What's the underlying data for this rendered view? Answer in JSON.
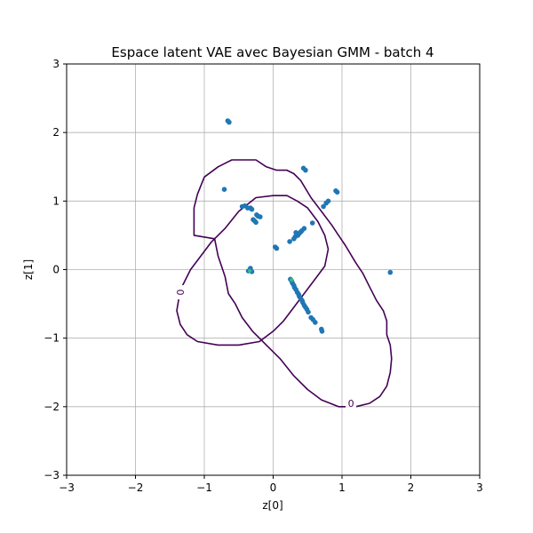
{
  "chart_data": {
    "type": "scatter",
    "title": "Espace latent VAE avec Bayesian GMM - batch 4",
    "xlabel": "z[0]",
    "ylabel": "z[1]",
    "xlim": [
      -3,
      3
    ],
    "ylim": [
      -3,
      3
    ],
    "x_ticks": [
      "−3",
      "−2",
      "−1",
      "0",
      "1",
      "2",
      "3"
    ],
    "y_ticks": [
      "−3",
      "−2",
      "−1",
      "0",
      "1",
      "2",
      "3"
    ],
    "grid": true,
    "colors": {
      "points": "#1f77b4",
      "highlight": "#3fb58a",
      "contour": "#440154",
      "grid": "#b0b0b0"
    },
    "contour_level_label": "0",
    "contours": [
      {
        "level": "0",
        "path": [
          [
            -0.6,
            1.6
          ],
          [
            -0.25,
            1.6
          ],
          [
            -0.1,
            1.5
          ],
          [
            0.05,
            1.45
          ],
          [
            0.2,
            1.45
          ],
          [
            0.3,
            1.4
          ],
          [
            0.4,
            1.3
          ],
          [
            0.55,
            1.05
          ],
          [
            0.7,
            0.85
          ],
          [
            0.85,
            0.65
          ],
          [
            0.95,
            0.5
          ],
          [
            1.05,
            0.35
          ],
          [
            1.2,
            0.1
          ],
          [
            1.3,
            -0.05
          ],
          [
            1.4,
            -0.25
          ],
          [
            1.5,
            -0.45
          ],
          [
            1.6,
            -0.6
          ],
          [
            1.65,
            -0.75
          ],
          [
            1.65,
            -0.95
          ],
          [
            1.7,
            -1.1
          ],
          [
            1.72,
            -1.3
          ],
          [
            1.7,
            -1.5
          ],
          [
            1.65,
            -1.7
          ],
          [
            1.55,
            -1.85
          ],
          [
            1.4,
            -1.95
          ],
          [
            1.2,
            -2.0
          ],
          [
            0.95,
            -2.0
          ],
          [
            0.7,
            -1.9
          ],
          [
            0.5,
            -1.75
          ],
          [
            0.3,
            -1.55
          ],
          [
            0.1,
            -1.3
          ],
          [
            -0.1,
            -1.1
          ],
          [
            -0.3,
            -0.9
          ],
          [
            -0.45,
            -0.7
          ],
          [
            -0.55,
            -0.5
          ],
          [
            -0.65,
            -0.35
          ],
          [
            -0.7,
            -0.1
          ],
          [
            -0.8,
            0.2
          ],
          [
            -0.85,
            0.45
          ],
          [
            -1.15,
            0.5
          ],
          [
            -1.15,
            0.9
          ],
          [
            -1.1,
            1.1
          ],
          [
            -1.0,
            1.35
          ],
          [
            -0.8,
            1.5
          ],
          [
            -0.6,
            1.6
          ]
        ]
      },
      {
        "level": "0",
        "path": [
          [
            -0.25,
            1.05
          ],
          [
            0.0,
            1.08
          ],
          [
            0.2,
            1.08
          ],
          [
            0.35,
            1.0
          ],
          [
            0.5,
            0.9
          ],
          [
            0.65,
            0.7
          ],
          [
            0.75,
            0.5
          ],
          [
            0.8,
            0.3
          ],
          [
            0.75,
            0.05
          ],
          [
            0.6,
            -0.15
          ],
          [
            0.45,
            -0.35
          ],
          [
            0.3,
            -0.55
          ],
          [
            0.15,
            -0.75
          ],
          [
            0.0,
            -0.9
          ],
          [
            -0.2,
            -1.05
          ],
          [
            -0.5,
            -1.1
          ],
          [
            -0.8,
            -1.1
          ],
          [
            -1.1,
            -1.05
          ],
          [
            -1.25,
            -0.95
          ],
          [
            -1.35,
            -0.8
          ],
          [
            -1.4,
            -0.6
          ],
          [
            -1.35,
            -0.3
          ],
          [
            -1.2,
            0.0
          ],
          [
            -1.05,
            0.2
          ],
          [
            -0.9,
            0.4
          ],
          [
            -0.7,
            0.6
          ],
          [
            -0.5,
            0.85
          ],
          [
            -0.25,
            1.05
          ]
        ]
      }
    ],
    "contour_labels": [
      {
        "text": "0",
        "x": -1.35,
        "y": -0.33
      },
      {
        "text": "0",
        "x": 1.13,
        "y": -1.95
      }
    ],
    "points": [
      [
        -0.66,
        2.17
      ],
      [
        -0.64,
        2.15
      ],
      [
        0.44,
        1.48
      ],
      [
        0.47,
        1.45
      ],
      [
        0.91,
        1.15
      ],
      [
        0.93,
        1.13
      ],
      [
        -0.71,
        1.17
      ],
      [
        0.8,
        1.0
      ],
      [
        0.77,
        0.97
      ],
      [
        0.73,
        0.92
      ],
      [
        -0.45,
        0.92
      ],
      [
        -0.41,
        0.93
      ],
      [
        -0.37,
        0.9
      ],
      [
        -0.33,
        0.9
      ],
      [
        -0.31,
        0.88
      ],
      [
        -0.24,
        0.8
      ],
      [
        -0.22,
        0.78
      ],
      [
        -0.19,
        0.77
      ],
      [
        -0.29,
        0.73
      ],
      [
        -0.27,
        0.71
      ],
      [
        -0.25,
        0.69
      ],
      [
        0.57,
        0.68
      ],
      [
        0.45,
        0.6
      ],
      [
        0.42,
        0.57
      ],
      [
        0.4,
        0.55
      ],
      [
        0.38,
        0.53
      ],
      [
        0.36,
        0.5
      ],
      [
        0.32,
        0.48
      ],
      [
        0.3,
        0.45
      ],
      [
        0.33,
        0.54
      ],
      [
        0.24,
        0.41
      ],
      [
        0.03,
        0.33
      ],
      [
        0.05,
        0.31
      ],
      [
        1.7,
        -0.04
      ],
      [
        -0.33,
        0.02
      ],
      [
        -0.36,
        -0.02
      ],
      [
        -0.31,
        -0.03
      ],
      [
        0.25,
        -0.14
      ],
      [
        0.27,
        -0.17
      ],
      [
        0.28,
        -0.2
      ],
      [
        0.3,
        -0.23
      ],
      [
        0.31,
        -0.26
      ],
      [
        0.33,
        -0.29
      ],
      [
        0.35,
        -0.33
      ],
      [
        0.37,
        -0.36
      ],
      [
        0.38,
        -0.39
      ],
      [
        0.4,
        -0.42
      ],
      [
        0.42,
        -0.45
      ],
      [
        0.43,
        -0.48
      ],
      [
        0.45,
        -0.52
      ],
      [
        0.47,
        -0.55
      ],
      [
        0.49,
        -0.58
      ],
      [
        0.51,
        -0.62
      ],
      [
        0.55,
        -0.7
      ],
      [
        0.58,
        -0.73
      ],
      [
        0.61,
        -0.77
      ],
      [
        0.7,
        -0.87
      ],
      [
        0.71,
        -0.9
      ]
    ],
    "highlight_points": [
      [
        -0.34,
        -0.02
      ],
      [
        0.27,
        -0.15
      ]
    ]
  }
}
